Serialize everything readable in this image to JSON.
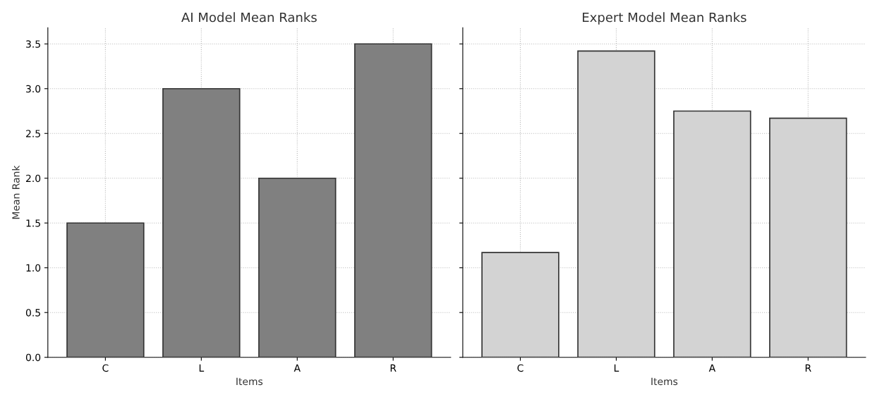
{
  "chart_data": [
    {
      "type": "bar",
      "title": "AI Model Mean Ranks",
      "xlabel": "Items",
      "ylabel": "Mean Rank",
      "categories": [
        "C",
        "L",
        "A",
        "R"
      ],
      "values": [
        1.5,
        3.0,
        2.0,
        3.5
      ],
      "color": "#808080",
      "ylim": [
        0,
        3.68
      ],
      "yticks": [
        {
          "value": 0,
          "label": "0.0"
        },
        0.5,
        {
          "value": 1,
          "label": "1.0"
        },
        1.5,
        {
          "value": 2,
          "label": "2.0"
        },
        2.5,
        {
          "value": 3,
          "label": "3.0"
        },
        3.5
      ],
      "grid": true
    },
    {
      "type": "bar",
      "title": "Expert Model Mean Ranks",
      "xlabel": "Items",
      "categories": [
        "C",
        "L",
        "A",
        "R"
      ],
      "values": [
        1.17,
        3.42,
        2.75,
        2.67
      ],
      "color": "#d3d3d3",
      "ylim": [
        0,
        3.68
      ],
      "yticks": [
        0,
        0.5,
        1,
        1.5,
        2,
        2.5,
        3,
        3.5
      ],
      "grid": true,
      "tick_labels": "x"
    }
  ]
}
